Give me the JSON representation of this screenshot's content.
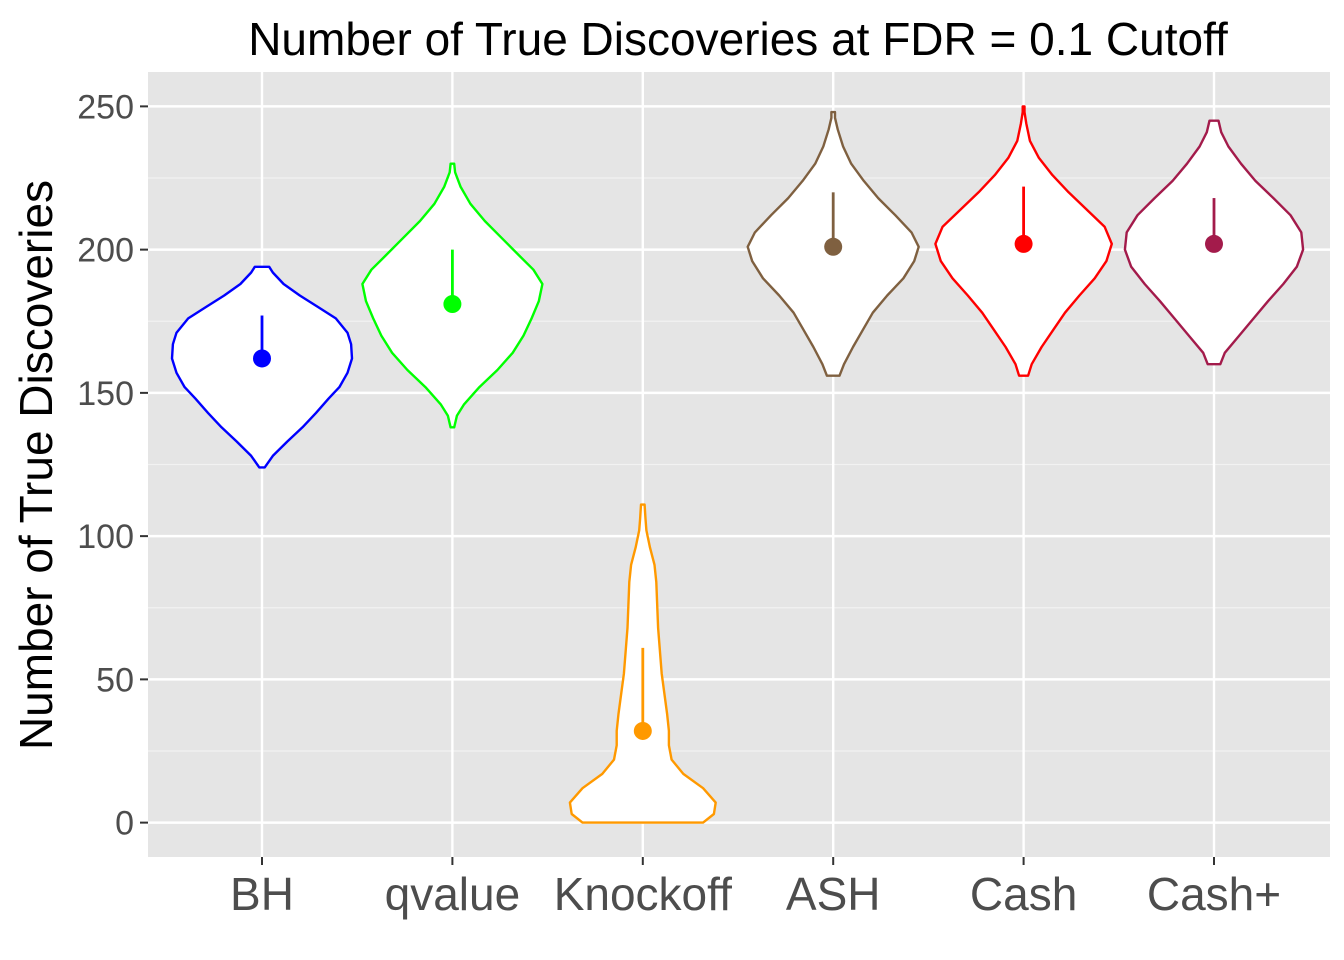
{
  "chart_data": {
    "type": "violin",
    "title": "Number of True Discoveries at FDR = 0.1 Cutoff",
    "xlabel": "",
    "ylabel": "Number of True Discoveries",
    "ylim": [
      -12,
      262
    ],
    "yticks": [
      0,
      50,
      100,
      150,
      200,
      250
    ],
    "ytick_labels": [
      "0",
      "50",
      "100",
      "150",
      "200",
      "250"
    ],
    "grid": true,
    "categories": [
      "BH",
      "qvalue",
      "Knockoff",
      "ASH",
      "Cash",
      "Cash+"
    ],
    "series": [
      {
        "category": "BH",
        "color": "#0000ff",
        "min": 124,
        "max": 194,
        "median": 162,
        "upper": 177,
        "density": [
          [
            124,
            0.03
          ],
          [
            128,
            0.12
          ],
          [
            133,
            0.28
          ],
          [
            138,
            0.45
          ],
          [
            143,
            0.6
          ],
          [
            148,
            0.74
          ],
          [
            152,
            0.86
          ],
          [
            157,
            0.95
          ],
          [
            162,
            1.0
          ],
          [
            167,
            0.99
          ],
          [
            171,
            0.95
          ],
          [
            176,
            0.82
          ],
          [
            180,
            0.62
          ],
          [
            184,
            0.42
          ],
          [
            188,
            0.24
          ],
          [
            192,
            0.12
          ],
          [
            194,
            0.08
          ]
        ]
      },
      {
        "category": "qvalue",
        "color": "#00ff00",
        "min": 138,
        "max": 230,
        "median": 181,
        "upper": 200,
        "density": [
          [
            138,
            0.02
          ],
          [
            142,
            0.05
          ],
          [
            146,
            0.13
          ],
          [
            152,
            0.3
          ],
          [
            158,
            0.5
          ],
          [
            164,
            0.67
          ],
          [
            170,
            0.79
          ],
          [
            176,
            0.88
          ],
          [
            182,
            0.96
          ],
          [
            188,
            1.0
          ],
          [
            193,
            0.9
          ],
          [
            198,
            0.74
          ],
          [
            204,
            0.55
          ],
          [
            210,
            0.36
          ],
          [
            216,
            0.2
          ],
          [
            222,
            0.09
          ],
          [
            227,
            0.03
          ],
          [
            230,
            0.02
          ]
        ]
      },
      {
        "category": "Knockoff",
        "color": "#ff9900",
        "min": 0,
        "max": 111,
        "median": 32,
        "upper": 61,
        "density": [
          [
            0,
            0.67
          ],
          [
            3,
            0.79
          ],
          [
            7,
            0.81
          ],
          [
            12,
            0.67
          ],
          [
            17,
            0.45
          ],
          [
            22,
            0.32
          ],
          [
            27,
            0.29
          ],
          [
            32,
            0.29
          ],
          [
            38,
            0.27
          ],
          [
            45,
            0.24
          ],
          [
            52,
            0.21
          ],
          [
            60,
            0.19
          ],
          [
            68,
            0.17
          ],
          [
            76,
            0.16
          ],
          [
            84,
            0.15
          ],
          [
            90,
            0.13
          ],
          [
            96,
            0.08
          ],
          [
            102,
            0.04
          ],
          [
            106,
            0.03
          ],
          [
            111,
            0.02
          ]
        ]
      },
      {
        "category": "ASH",
        "color": "#7f6040",
        "min": 156,
        "max": 248,
        "median": 201,
        "upper": 220,
        "density": [
          [
            156,
            0.07
          ],
          [
            160,
            0.12
          ],
          [
            166,
            0.22
          ],
          [
            172,
            0.33
          ],
          [
            178,
            0.44
          ],
          [
            184,
            0.6
          ],
          [
            190,
            0.78
          ],
          [
            196,
            0.9
          ],
          [
            201,
            0.95
          ],
          [
            206,
            0.87
          ],
          [
            212,
            0.69
          ],
          [
            218,
            0.5
          ],
          [
            224,
            0.34
          ],
          [
            230,
            0.2
          ],
          [
            236,
            0.11
          ],
          [
            242,
            0.05
          ],
          [
            246,
            0.02
          ],
          [
            248,
            0.02
          ]
        ]
      },
      {
        "category": "Cash",
        "color": "#ff0000",
        "min": 156,
        "max": 250,
        "median": 202,
        "upper": 222,
        "density": [
          [
            156,
            0.05
          ],
          [
            160,
            0.09
          ],
          [
            166,
            0.2
          ],
          [
            172,
            0.33
          ],
          [
            178,
            0.46
          ],
          [
            184,
            0.62
          ],
          [
            190,
            0.79
          ],
          [
            196,
            0.92
          ],
          [
            202,
            0.98
          ],
          [
            208,
            0.9
          ],
          [
            214,
            0.7
          ],
          [
            220,
            0.5
          ],
          [
            226,
            0.32
          ],
          [
            232,
            0.17
          ],
          [
            238,
            0.07
          ],
          [
            244,
            0.03
          ],
          [
            248,
            0.01
          ],
          [
            250,
            0.01
          ]
        ]
      },
      {
        "category": "Cash+",
        "color": "#a31b4b",
        "min": 160,
        "max": 245,
        "median": 202,
        "upper": 218,
        "density": [
          [
            160,
            0.07
          ],
          [
            164,
            0.12
          ],
          [
            170,
            0.28
          ],
          [
            176,
            0.44
          ],
          [
            182,
            0.6
          ],
          [
            188,
            0.77
          ],
          [
            194,
            0.92
          ],
          [
            200,
            0.99
          ],
          [
            206,
            0.97
          ],
          [
            212,
            0.85
          ],
          [
            218,
            0.66
          ],
          [
            224,
            0.46
          ],
          [
            230,
            0.3
          ],
          [
            236,
            0.16
          ],
          [
            241,
            0.08
          ],
          [
            245,
            0.05
          ]
        ]
      }
    ]
  }
}
